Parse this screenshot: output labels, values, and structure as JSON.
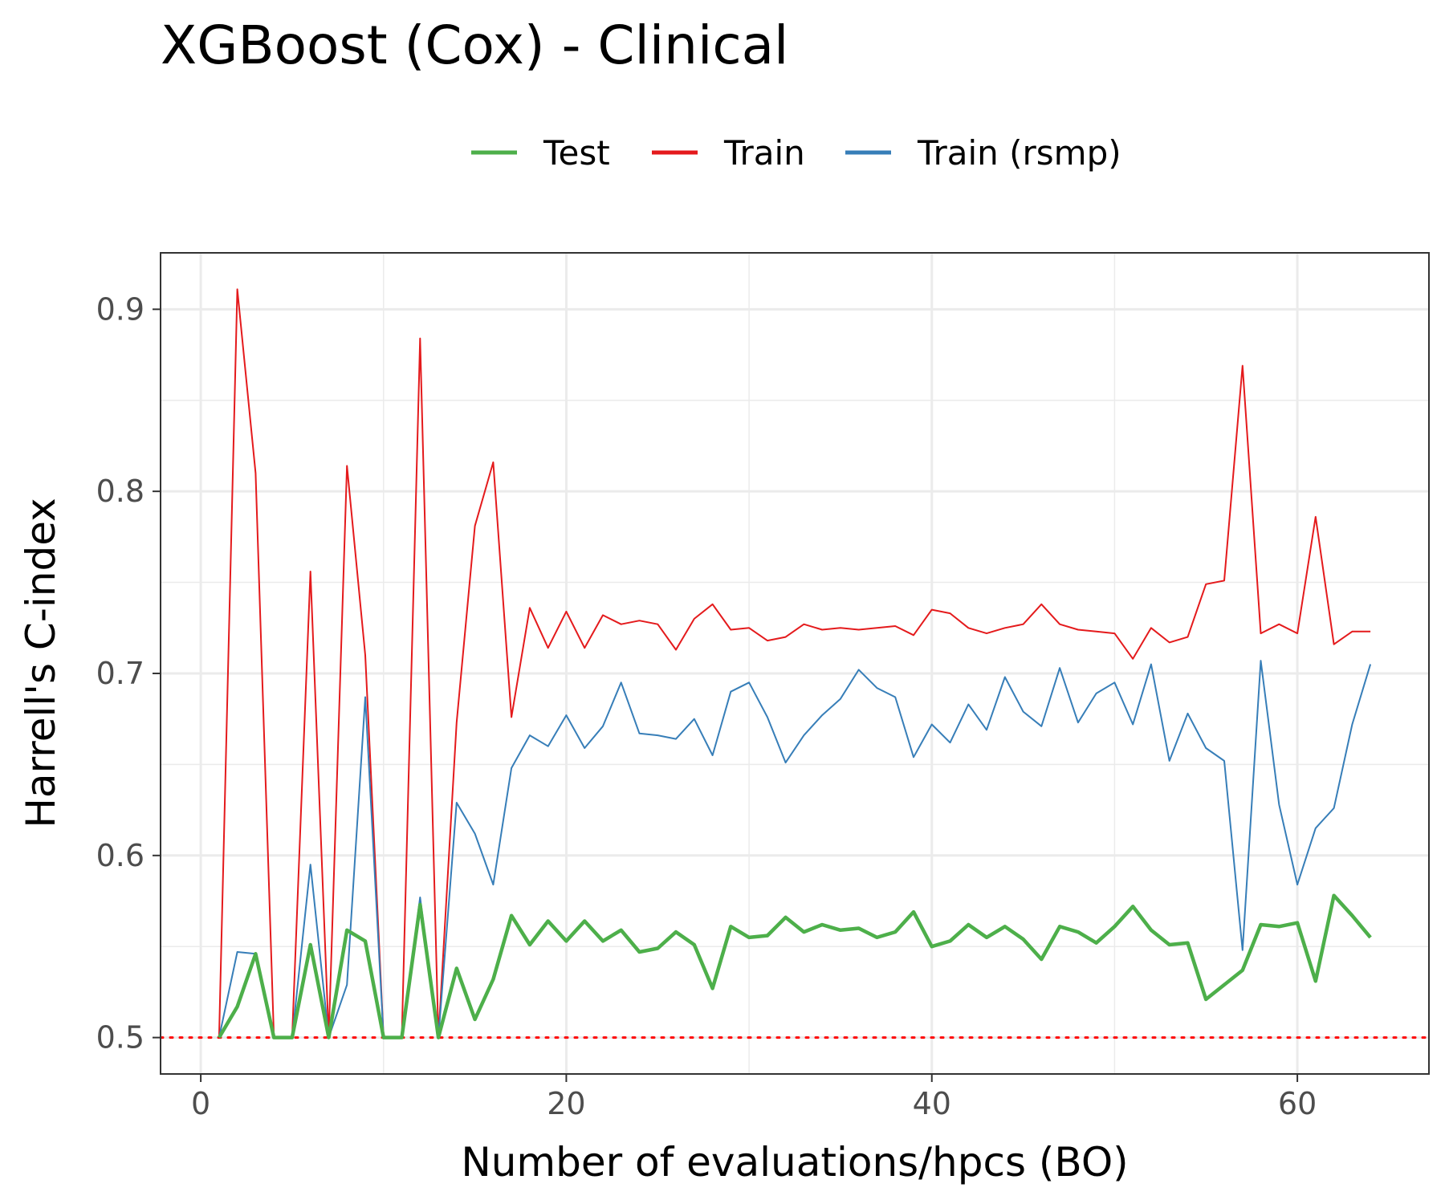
{
  "chart_data": {
    "type": "line",
    "title": "XGBoost (Cox) - Clinical",
    "xlabel": "Number of evaluations/hpcs (BO)",
    "ylabel": "Harrell's C-index",
    "xlim": [
      -2.2,
      67.2
    ],
    "ylim": [
      0.48,
      0.931
    ],
    "xticks": [
      0,
      20,
      40,
      60
    ],
    "xtick_labels": [
      "0",
      "20",
      "40",
      "60"
    ],
    "yticks": [
      0.5,
      0.6,
      0.7,
      0.8,
      0.9
    ],
    "ytick_labels": [
      "0.5",
      "0.6",
      "0.7",
      "0.8",
      "0.9"
    ],
    "grid": true,
    "legend_position": "top",
    "reference_line": {
      "y": 0.5,
      "color": "#ff0000",
      "style": "dotted"
    },
    "x": [
      1,
      2,
      3,
      4,
      5,
      6,
      7,
      8,
      9,
      10,
      11,
      12,
      13,
      14,
      15,
      16,
      17,
      18,
      19,
      20,
      21,
      22,
      23,
      24,
      25,
      26,
      27,
      28,
      29,
      30,
      31,
      32,
      33,
      34,
      35,
      36,
      37,
      38,
      39,
      40,
      41,
      42,
      43,
      44,
      45,
      46,
      47,
      48,
      49,
      50,
      51,
      52,
      53,
      54,
      55,
      56,
      57,
      58,
      59,
      60,
      61,
      62,
      63,
      64
    ],
    "series": [
      {
        "name": "Test",
        "color": "#4DAF4A",
        "stroke_width": 4.5,
        "values": [
          0.5,
          0.517,
          0.546,
          0.5,
          0.5,
          0.551,
          0.5,
          0.559,
          0.553,
          0.5,
          0.5,
          0.573,
          0.5,
          0.538,
          0.51,
          0.532,
          0.567,
          0.551,
          0.564,
          0.553,
          0.564,
          0.553,
          0.559,
          0.547,
          0.549,
          0.558,
          0.551,
          0.527,
          0.561,
          0.555,
          0.556,
          0.566,
          0.558,
          0.562,
          0.559,
          0.56,
          0.555,
          0.558,
          0.569,
          0.55,
          0.553,
          0.562,
          0.555,
          0.561,
          0.554,
          0.543,
          0.561,
          0.558,
          0.552,
          0.561,
          0.572,
          0.559,
          0.551,
          0.552,
          0.521,
          0.529,
          0.537,
          0.562,
          0.561,
          0.563,
          0.531,
          0.578,
          0.567,
          0.555
        ]
      },
      {
        "name": "Train",
        "color": "#E41A1C",
        "stroke_width": 2,
        "values": [
          0.5,
          0.911,
          0.81,
          0.5,
          0.5,
          0.756,
          0.5,
          0.814,
          0.71,
          0.5,
          0.5,
          0.884,
          0.5,
          0.673,
          0.781,
          0.816,
          0.676,
          0.736,
          0.714,
          0.734,
          0.714,
          0.732,
          0.727,
          0.729,
          0.727,
          0.713,
          0.73,
          0.738,
          0.724,
          0.725,
          0.718,
          0.72,
          0.727,
          0.724,
          0.725,
          0.724,
          0.725,
          0.726,
          0.721,
          0.735,
          0.733,
          0.725,
          0.722,
          0.725,
          0.727,
          0.738,
          0.727,
          0.724,
          0.723,
          0.722,
          0.708,
          0.725,
          0.717,
          0.72,
          0.749,
          0.751,
          0.869,
          0.722,
          0.727,
          0.722,
          0.786,
          0.716,
          0.723,
          0.723
        ]
      },
      {
        "name": "Train (rsmp)",
        "color": "#377EB8",
        "stroke_width": 2,
        "values": [
          0.5,
          0.547,
          0.546,
          0.5,
          0.5,
          0.595,
          0.5,
          0.529,
          0.687,
          0.5,
          0.5,
          0.577,
          0.5,
          0.629,
          0.612,
          0.584,
          0.648,
          0.666,
          0.66,
          0.677,
          0.659,
          0.671,
          0.695,
          0.667,
          0.666,
          0.664,
          0.675,
          0.655,
          0.69,
          0.695,
          0.676,
          0.651,
          0.666,
          0.677,
          0.686,
          0.702,
          0.692,
          0.687,
          0.654,
          0.672,
          0.662,
          0.683,
          0.669,
          0.698,
          0.679,
          0.671,
          0.703,
          0.673,
          0.689,
          0.695,
          0.672,
          0.705,
          0.652,
          0.678,
          0.659,
          0.652,
          0.548,
          0.707,
          0.628,
          0.584,
          0.615,
          0.626,
          0.672,
          0.705
        ]
      }
    ]
  }
}
